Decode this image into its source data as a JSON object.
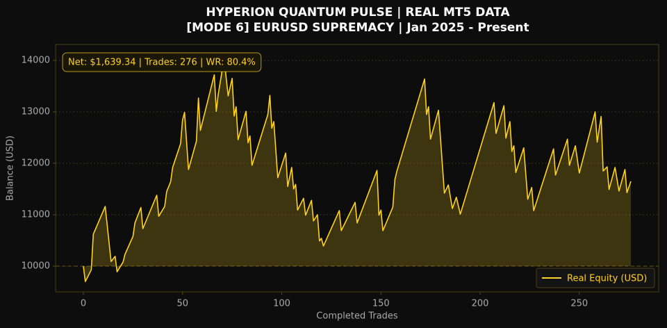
{
  "chart_data": {
    "type": "line",
    "title": [
      "HYPERION QUANTUM PULSE | REAL MT5 DATA",
      "[MODE 6] EURUSD SUPREMACY | Jan 2025 - Present"
    ],
    "xlabel": "Completed Trades",
    "ylabel": "Balance (USD)",
    "annotation": "Net: $1,639.34 | Trades: 276 | WR: 80.4%",
    "x": [
      0,
      1,
      4,
      5,
      11,
      14,
      16,
      17,
      20,
      21,
      25,
      26,
      29,
      30,
      37,
      38,
      41,
      42,
      44,
      45,
      49,
      50,
      51,
      53,
      57,
      58,
      59,
      66,
      67,
      68,
      71,
      72,
      73,
      75,
      76,
      77,
      78,
      82,
      83,
      84,
      85,
      93,
      94,
      95,
      96,
      98,
      102,
      103,
      105,
      106,
      107,
      108,
      111,
      112,
      115,
      116,
      118,
      119,
      120,
      121,
      129,
      130,
      137,
      138,
      148,
      149,
      150,
      151,
      156,
      157,
      158,
      172,
      173,
      174,
      175,
      179,
      182,
      184,
      186,
      188,
      190,
      207,
      208,
      212,
      213,
      215,
      216,
      217,
      218,
      222,
      224,
      226,
      227,
      237,
      238,
      244,
      245,
      248,
      250,
      258,
      259,
      261,
      262,
      264,
      265,
      268,
      270,
      273,
      274,
      276
    ],
    "series": [
      {
        "name": "Real Equity (USD)",
        "color": "#FFD21F",
        "values": [
          10000,
          9700,
          9930,
          10620,
          11160,
          10090,
          10190,
          9890,
          10080,
          10230,
          10580,
          10840,
          11140,
          10730,
          11380,
          10970,
          11160,
          11450,
          11640,
          11920,
          12380,
          12840,
          12990,
          11880,
          12430,
          13270,
          12640,
          13720,
          13010,
          13340,
          14050,
          13650,
          13310,
          13650,
          12920,
          13100,
          12460,
          13010,
          12400,
          12530,
          11960,
          12950,
          13320,
          12680,
          12810,
          11720,
          12200,
          11550,
          11920,
          11500,
          11590,
          11090,
          11320,
          10990,
          11280,
          10880,
          11000,
          10490,
          10540,
          10390,
          11080,
          10690,
          11240,
          10840,
          11860,
          10990,
          11090,
          10690,
          11150,
          11680,
          11840,
          13640,
          12950,
          13100,
          12470,
          13030,
          11420,
          11580,
          11120,
          11340,
          11010,
          13180,
          12580,
          13120,
          12490,
          12810,
          12230,
          12340,
          11820,
          12300,
          11300,
          11530,
          11080,
          12280,
          11770,
          12470,
          11960,
          12340,
          11810,
          13000,
          12410,
          12910,
          11850,
          11930,
          11490,
          11920,
          11460,
          11880,
          11430,
          11650
        ]
      }
    ],
    "baseline": 10000,
    "fill": true,
    "xlim": [
      -14,
      290
    ],
    "ylim": [
      9500,
      14310
    ],
    "xticks": [
      0,
      50,
      100,
      150,
      200,
      250
    ],
    "yticks": [
      10000,
      11000,
      12000,
      13000,
      14000
    ],
    "grid": "y",
    "legend": "lower right"
  }
}
